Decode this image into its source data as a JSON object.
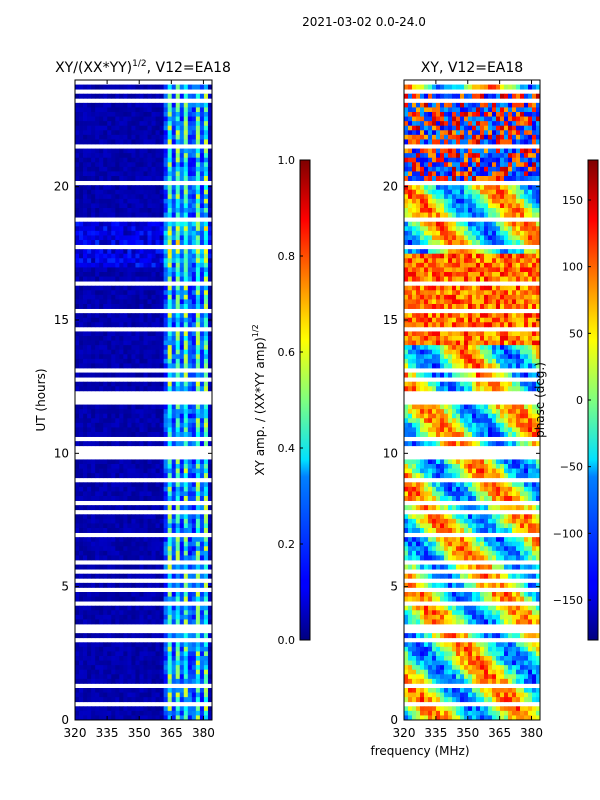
{
  "chart_data": {
    "suptitle": "2021-03-02 0.0-24.0",
    "xlabel": "frequency (MHz)",
    "panels": [
      {
        "type": "heatmap",
        "title": "XY/(XX*YY)",
        "title_sup": "1/2",
        "title_suffix": ", V12=EA18",
        "ylabel": "UT (hours)",
        "xlim": [
          320,
          384
        ],
        "ylim": [
          0,
          24
        ],
        "xticks": [
          "320",
          "335",
          "350",
          "365",
          "380"
        ],
        "yticks": [
          "0",
          "5",
          "10",
          "15",
          "20"
        ],
        "colorbar": {
          "label": "XY amp. / (XX*YY amp)",
          "label_sup": "1/2",
          "range": [
            0,
            1
          ],
          "ticks": [
            "0.0",
            "0.2",
            "0.4",
            "0.6",
            "0.8",
            "1.0"
          ]
        }
      },
      {
        "type": "heatmap",
        "title": "XY, V12=EA18",
        "ylabel": "",
        "xlim": [
          320,
          384
        ],
        "ylim": [
          0,
          24
        ],
        "xticks": [
          "320",
          "335",
          "350",
          "365",
          "380"
        ],
        "yticks": [
          "0",
          "5",
          "10",
          "15",
          "20"
        ],
        "colorbar": {
          "label": "phase (deg.)",
          "range": [
            -180,
            180
          ],
          "ticks": [
            "-150",
            "-100",
            "-50",
            "0",
            "50",
            "100",
            "150"
          ]
        }
      }
    ]
  }
}
